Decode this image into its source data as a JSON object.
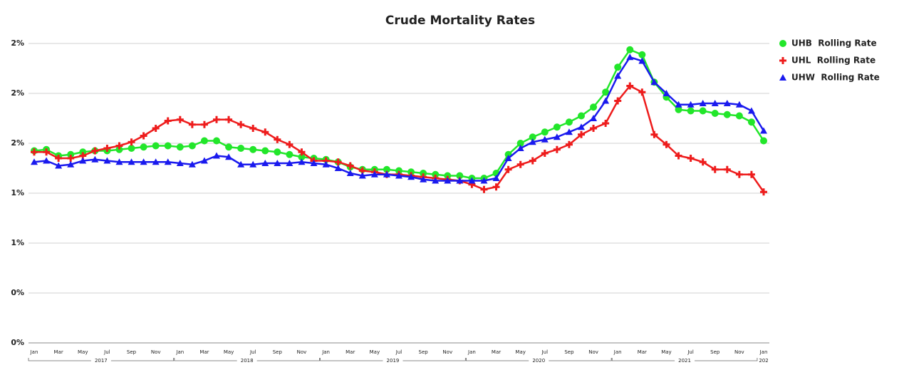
{
  "chart_data": {
    "type": "line",
    "title": "Crude Mortality Rates",
    "categories": [
      "Jan",
      null,
      "Mar",
      null,
      "May",
      null,
      "Jul",
      null,
      "Sep",
      null,
      "Nov",
      null,
      "Jan",
      null,
      "Mar",
      null,
      "May",
      null,
      "Jul",
      null,
      "Sep",
      null,
      "Nov",
      null,
      "Jan",
      null,
      "Mar",
      null,
      "May",
      null,
      "Jul",
      null,
      "Sep",
      null,
      "Nov",
      null,
      "Jan",
      null,
      "Mar",
      null,
      "May",
      null,
      "Jul",
      null,
      "Sep",
      null,
      "Nov",
      null,
      "Jan",
      null,
      "Mar",
      null,
      "May",
      null,
      "Jul",
      null,
      "Sep",
      null,
      "Nov",
      null,
      "Jan"
    ],
    "year_labels": [
      "2017",
      "2018",
      "2019",
      "2020",
      "2021",
      "202"
    ],
    "ylim": [
      0,
      2.4
    ],
    "yticks": [
      {
        "value": 0,
        "label": "0%"
      },
      {
        "value": 0.4,
        "label": "0%"
      },
      {
        "value": 0.8,
        "label": "1%"
      },
      {
        "value": 1.2,
        "label": "1%"
      },
      {
        "value": 1.6,
        "label": "2%"
      },
      {
        "value": 2.0,
        "label": "2%"
      },
      {
        "value": 2.4,
        "label": "2%"
      }
    ],
    "grid": true,
    "legend": "right",
    "series": [
      {
        "name": "UHB  Rolling Rate",
        "color": "#22e62a",
        "marker": "circle",
        "values": [
          1.54,
          1.55,
          1.5,
          1.51,
          1.53,
          1.54,
          1.54,
          1.55,
          1.56,
          1.57,
          1.58,
          1.58,
          1.57,
          1.58,
          1.62,
          1.62,
          1.57,
          1.56,
          1.55,
          1.54,
          1.53,
          1.51,
          1.49,
          1.48,
          1.47,
          1.45,
          1.41,
          1.39,
          1.39,
          1.39,
          1.38,
          1.37,
          1.36,
          1.35,
          1.34,
          1.34,
          1.32,
          1.32,
          1.36,
          1.51,
          1.6,
          1.65,
          1.69,
          1.73,
          1.77,
          1.82,
          1.89,
          2.01,
          2.21,
          2.35,
          2.31,
          2.09,
          1.97,
          1.87,
          1.86,
          1.86,
          1.84,
          1.83,
          1.82,
          1.77,
          1.62
        ]
      },
      {
        "name": "UHL  Rolling Rate",
        "color": "#ee1c1c",
        "marker": "plus",
        "values": [
          1.53,
          1.53,
          1.48,
          1.48,
          1.5,
          1.54,
          1.56,
          1.58,
          1.61,
          1.66,
          1.72,
          1.78,
          1.79,
          1.75,
          1.75,
          1.79,
          1.79,
          1.75,
          1.72,
          1.69,
          1.63,
          1.59,
          1.53,
          1.46,
          1.46,
          1.45,
          1.42,
          1.38,
          1.37,
          1.35,
          1.35,
          1.34,
          1.33,
          1.32,
          1.31,
          1.3,
          1.27,
          1.23,
          1.25,
          1.39,
          1.43,
          1.46,
          1.52,
          1.55,
          1.59,
          1.67,
          1.72,
          1.76,
          1.94,
          2.06,
          2.01,
          1.67,
          1.59,
          1.5,
          1.48,
          1.45,
          1.39,
          1.39,
          1.35,
          1.35,
          1.21
        ]
      },
      {
        "name": "UHW  Rolling Rate",
        "color": "#1a1aee",
        "marker": "triangle",
        "values": [
          1.45,
          1.46,
          1.42,
          1.43,
          1.46,
          1.47,
          1.46,
          1.45,
          1.45,
          1.45,
          1.45,
          1.45,
          1.44,
          1.43,
          1.46,
          1.5,
          1.49,
          1.43,
          1.43,
          1.44,
          1.44,
          1.44,
          1.45,
          1.44,
          1.43,
          1.4,
          1.36,
          1.34,
          1.35,
          1.35,
          1.34,
          1.33,
          1.31,
          1.3,
          1.3,
          1.3,
          1.3,
          1.3,
          1.32,
          1.48,
          1.56,
          1.61,
          1.63,
          1.65,
          1.69,
          1.73,
          1.8,
          1.94,
          2.14,
          2.29,
          2.26,
          2.09,
          2.0,
          1.91,
          1.91,
          1.92,
          1.92,
          1.92,
          1.91,
          1.86,
          1.7
        ]
      }
    ]
  }
}
